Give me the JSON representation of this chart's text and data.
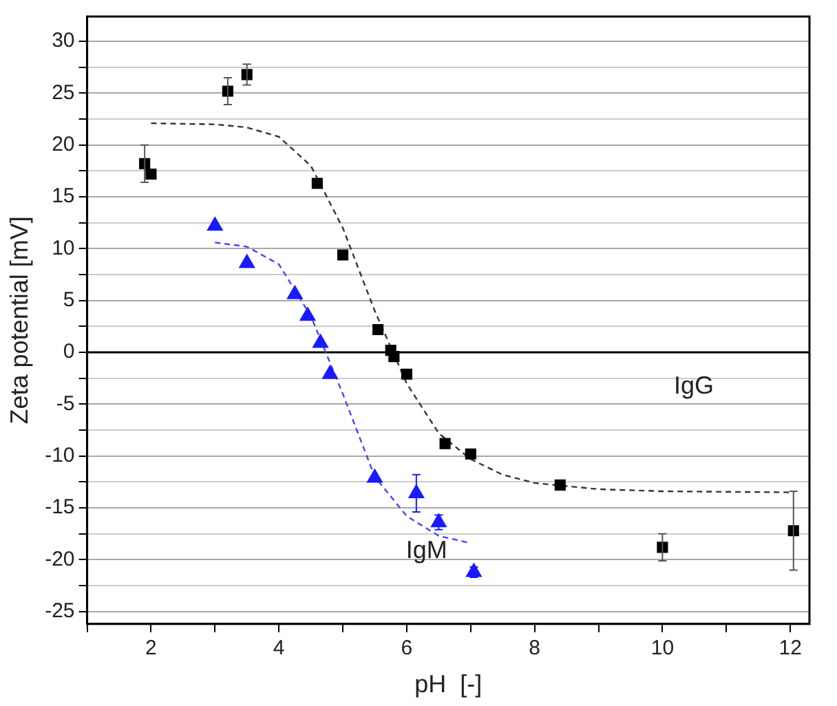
{
  "chart_data": {
    "type": "scatter",
    "xlabel": "pH  [-]",
    "ylabel": "Zeta potential [mV]",
    "xlim": [
      1,
      12.3
    ],
    "ylim": [
      -26.2,
      32.4
    ],
    "xticks": [
      {
        "value": 1,
        "label": null
      },
      2,
      {
        "value": 3,
        "label": null
      },
      4,
      {
        "value": 5,
        "label": null
      },
      6,
      {
        "value": 7,
        "label": null
      },
      8,
      {
        "value": 9,
        "label": null
      },
      10,
      {
        "value": 11,
        "label": null
      },
      12
    ],
    "yticks": [
      -25,
      {
        "value": -22.5,
        "label": null
      },
      -20,
      {
        "value": -17.5,
        "label": null
      },
      -15,
      {
        "value": -12.5,
        "label": null
      },
      -10,
      {
        "value": -7.5,
        "label": null
      },
      -5,
      {
        "value": -2.5,
        "label": null
      },
      0,
      {
        "value": 2.5,
        "label": null
      },
      5,
      {
        "value": 7.5,
        "label": null
      },
      10,
      {
        "value": 12.5,
        "label": null
      },
      15,
      {
        "value": 17.5,
        "label": null
      },
      20,
      {
        "value": 22.5,
        "label": null
      },
      25,
      {
        "value": 27.5,
        "label": null
      },
      30
    ],
    "grid": "y",
    "legend": false,
    "ref_lines": [
      {
        "axis": "y",
        "value": 0,
        "color": "#000000"
      }
    ],
    "series": [
      {
        "marker": "square",
        "color": "#000000",
        "x": [
          1.9,
          2.0,
          3.2,
          3.5,
          4.6,
          5.0,
          5.55,
          5.75,
          5.8,
          6.0,
          6.6,
          7.0,
          8.4,
          10.0,
          12.05
        ],
        "values": [
          18.2,
          17.2,
          25.2,
          26.8,
          16.3,
          9.4,
          2.2,
          0.2,
          -0.4,
          -2.1,
          -8.8,
          -9.8,
          -12.8,
          -18.8,
          -17.2
        ],
        "errors": [
          1.8,
          null,
          1.3,
          1.0,
          null,
          null,
          null,
          null,
          null,
          null,
          null,
          null,
          null,
          1.3,
          3.8
        ]
      },
      {
        "marker": "triangle",
        "color": "#1a1aff",
        "x": [
          3.0,
          3.5,
          4.25,
          4.45,
          4.65,
          4.8,
          5.5,
          6.15,
          6.5,
          7.05
        ],
        "values": [
          12.2,
          8.6,
          5.6,
          3.5,
          0.9,
          -2.1,
          -12.1,
          -13.6,
          -16.4,
          -21.2
        ],
        "errors": [
          null,
          null,
          null,
          null,
          null,
          null,
          null,
          1.8,
          0.7,
          0.5
        ]
      },
      {
        "type": "line",
        "marker": "none",
        "line_style": "dashed",
        "color": "#333333",
        "x": [
          2,
          3,
          3.5,
          4,
          4.5,
          5,
          5.5,
          6,
          6.5,
          7,
          7.5,
          8,
          9,
          10,
          12
        ],
        "values": [
          22.1,
          22,
          21.7,
          20.8,
          18,
          12,
          4,
          -3,
          -7.8,
          -10.3,
          -11.8,
          -12.6,
          -13.2,
          -13.4,
          -13.5
        ]
      },
      {
        "type": "line",
        "marker": "none",
        "line_style": "dashed",
        "color": "#4444ff",
        "x": [
          3,
          3.5,
          4,
          4.5,
          5,
          5.5,
          6,
          6.5,
          7
        ],
        "values": [
          10.6,
          10.2,
          8.5,
          3.5,
          -4,
          -12,
          -15.8,
          -17.7,
          -18.4
        ]
      }
    ],
    "annotations": [
      "IgG",
      "IgM"
    ]
  }
}
